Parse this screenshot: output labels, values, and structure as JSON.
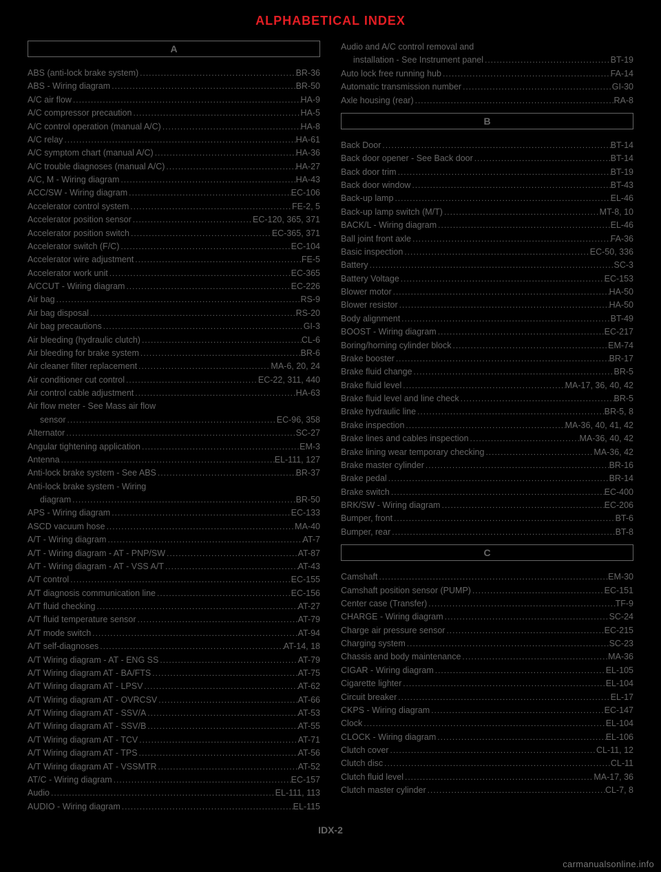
{
  "title": "ALPHABETICAL INDEX",
  "page_number": "IDX-2",
  "footer": "carmanualsonline.info",
  "sections": {
    "A": [
      {
        "label": "ABS (anti-lock brake system)",
        "pg": "BR-36"
      },
      {
        "label": "ABS - Wiring diagram",
        "pg": "BR-50"
      },
      {
        "label": "A/C air flow",
        "pg": "HA-9"
      },
      {
        "label": "A/C compressor precaution",
        "pg": "HA-5"
      },
      {
        "label": "A/C control operation (manual A/C)",
        "pg": "HA-8"
      },
      {
        "label": "A/C relay",
        "pg": "HA-61"
      },
      {
        "label": "A/C symptom chart (manual A/C)",
        "pg": "HA-36"
      },
      {
        "label": "A/C trouble diagnoses (manual A/C)",
        "pg": "HA-27"
      },
      {
        "label": "A/C, M - Wiring diagram",
        "pg": "HA-43"
      },
      {
        "label": "ACC/SW - Wiring diagram",
        "pg": "EC-106"
      },
      {
        "label": "Accelerator control system",
        "pg": "FE-2, 5"
      },
      {
        "label": "Accelerator position sensor",
        "pg": "EC-120, 365, 371"
      },
      {
        "label": "Accelerator position switch",
        "pg": "EC-365, 371"
      },
      {
        "label": "Accelerator switch (F/C)",
        "pg": "EC-104"
      },
      {
        "label": "Accelerator wire adjustment",
        "pg": "FE-5"
      },
      {
        "label": "Accelerator work unit",
        "pg": "EC-365"
      },
      {
        "label": "A/CCUT - Wiring diagram",
        "pg": "EC-226"
      },
      {
        "label": "Air bag",
        "pg": "RS-9"
      },
      {
        "label": "Air bag disposal",
        "pg": "RS-20"
      },
      {
        "label": "Air bag precautions",
        "pg": "GI-3"
      },
      {
        "label": "Air bleeding (hydraulic clutch)",
        "pg": "CL-6"
      },
      {
        "label": "Air bleeding for brake system",
        "pg": "BR-6"
      },
      {
        "label": "Air cleaner filter replacement",
        "pg": "MA-6, 20, 24"
      },
      {
        "label": "Air conditioner cut control",
        "pg": "EC-22, 311, 440"
      },
      {
        "label": "Air control cable adjustment",
        "pg": "HA-63"
      },
      {
        "label": "Air flow meter - See Mass air flow",
        "pg": "",
        "nopg": true
      },
      {
        "label": "sensor",
        "pg": "EC-96, 358",
        "cont": true
      },
      {
        "label": "Alternator",
        "pg": "SC-27"
      },
      {
        "label": "Angular tightening application",
        "pg": "EM-3"
      },
      {
        "label": "Antenna",
        "pg": "EL-111, 127"
      },
      {
        "label": "Anti-lock brake system - See ABS",
        "pg": "BR-37"
      },
      {
        "label": "Anti-lock brake system - Wiring",
        "pg": "",
        "nopg": true
      },
      {
        "label": "diagram",
        "pg": "BR-50",
        "cont": true
      },
      {
        "label": "APS - Wiring diagram",
        "pg": "EC-133"
      },
      {
        "label": "ASCD vacuum hose",
        "pg": "MA-40"
      },
      {
        "label": "A/T - Wiring diagram",
        "pg": "AT-7"
      },
      {
        "label": "A/T - Wiring diagram - AT - PNP/SW",
        "pg": "AT-87"
      },
      {
        "label": "A/T - Wiring diagram - AT - VSS A/T",
        "pg": "AT-43"
      },
      {
        "label": "A/T control",
        "pg": "EC-155"
      },
      {
        "label": "A/T diagnosis communication line",
        "pg": "EC-156"
      },
      {
        "label": "A/T fluid checking",
        "pg": "AT-27"
      },
      {
        "label": "A/T fluid temperature sensor",
        "pg": "AT-79"
      },
      {
        "label": "A/T mode switch",
        "pg": "AT-94"
      },
      {
        "label": "A/T self-diagnoses",
        "pg": "AT-14, 18"
      },
      {
        "label": "A/T Wiring diagram - AT - ENG SS",
        "pg": "AT-79"
      },
      {
        "label": "A/T Wiring diagram AT - BA/FTS",
        "pg": "AT-75"
      },
      {
        "label": "A/T Wiring diagram AT - LPSV",
        "pg": "AT-62"
      },
      {
        "label": "A/T Wiring diagram AT - OVRCSV",
        "pg": "AT-66"
      },
      {
        "label": "A/T Wiring diagram AT - SSV/A",
        "pg": "AT-53"
      },
      {
        "label": "A/T Wiring diagram AT - SSV/B",
        "pg": "AT-55"
      },
      {
        "label": "A/T Wiring diagram AT - TCV",
        "pg": "AT-71"
      },
      {
        "label": "A/T Wiring diagram AT - TPS",
        "pg": "AT-56"
      },
      {
        "label": "A/T Wiring diagram AT - VSSMTR",
        "pg": "AT-52"
      },
      {
        "label": "AT/C - Wiring diagram",
        "pg": "EC-157"
      },
      {
        "label": "Audio",
        "pg": "EL-111, 113"
      },
      {
        "label": "AUDIO - Wiring diagram",
        "pg": "EL-115"
      }
    ],
    "A_right": [
      {
        "label": "Audio and A/C control removal and",
        "pg": "",
        "nopg": true
      },
      {
        "label": "installation - See Instrument panel",
        "pg": "BT-19",
        "cont": true
      },
      {
        "label": "Auto lock free running hub",
        "pg": "FA-14"
      },
      {
        "label": "Automatic transmission number",
        "pg": "GI-30"
      },
      {
        "label": "Axle housing (rear)",
        "pg": "RA-8"
      }
    ],
    "B": [
      {
        "label": "Back Door",
        "pg": "BT-14"
      },
      {
        "label": "Back door opener - See Back door",
        "pg": "BT-14"
      },
      {
        "label": "Back door trim",
        "pg": "BT-19"
      },
      {
        "label": "Back door window",
        "pg": "BT-43"
      },
      {
        "label": "Back-up lamp",
        "pg": "EL-46"
      },
      {
        "label": "Back-up lamp switch (M/T)",
        "pg": "MT-8, 10"
      },
      {
        "label": "BACK/L - Wiring diagram",
        "pg": "EL-46"
      },
      {
        "label": "Ball joint front axle",
        "pg": "FA-36"
      },
      {
        "label": "Basic inspection",
        "pg": "EC-50, 336"
      },
      {
        "label": "Battery",
        "pg": "SC-3"
      },
      {
        "label": "Battery Voltage",
        "pg": "EC-153"
      },
      {
        "label": "Blower motor",
        "pg": "HA-50"
      },
      {
        "label": "Blower resistor",
        "pg": "HA-50"
      },
      {
        "label": "Body alignment",
        "pg": "BT-49"
      },
      {
        "label": "BOOST - Wiring diagram",
        "pg": "EC-217"
      },
      {
        "label": "Boring/horning cylinder block",
        "pg": "EM-74"
      },
      {
        "label": "Brake booster",
        "pg": "BR-17"
      },
      {
        "label": "Brake fluid change",
        "pg": "BR-5"
      },
      {
        "label": "Brake fluid level",
        "pg": "MA-17, 36, 40, 42"
      },
      {
        "label": "Brake fluid level and line check",
        "pg": "BR-5"
      },
      {
        "label": "Brake hydraulic line",
        "pg": "BR-5, 8"
      },
      {
        "label": "Brake inspection",
        "pg": "MA-36, 40, 41, 42"
      },
      {
        "label": "Brake lines and cables inspection",
        "pg": "MA-36, 40, 42"
      },
      {
        "label": "Brake lining wear temporary checking",
        "pg": "MA-36, 42"
      },
      {
        "label": "Brake master cylinder",
        "pg": "BR-16"
      },
      {
        "label": "Brake pedal",
        "pg": "BR-14"
      },
      {
        "label": "Brake switch",
        "pg": "EC-400"
      },
      {
        "label": "BRK/SW - Wiring diagram",
        "pg": "EC-206"
      },
      {
        "label": "Bumper, front",
        "pg": "BT-6"
      },
      {
        "label": "Bumper, rear",
        "pg": "BT-8"
      }
    ],
    "C": [
      {
        "label": "Camshaft",
        "pg": "EM-30"
      },
      {
        "label": "Camshaft position sensor (PUMP)",
        "pg": "EC-151"
      },
      {
        "label": "Center case (Transfer)",
        "pg": "TF-9"
      },
      {
        "label": "CHARGE - Wiring diagram",
        "pg": "SC-24"
      },
      {
        "label": "Charge air pressure sensor",
        "pg": "EC-215"
      },
      {
        "label": "Charging system",
        "pg": "SC-23"
      },
      {
        "label": "Chassis and body maintenance",
        "pg": "MA-36"
      },
      {
        "label": "CIGAR - Wiring diagram",
        "pg": "EL-105"
      },
      {
        "label": "Cigarette lighter",
        "pg": "EL-104"
      },
      {
        "label": "Circuit breaker",
        "pg": "EL-17"
      },
      {
        "label": "CKPS - Wiring diagram",
        "pg": "EC-147"
      },
      {
        "label": "Clock",
        "pg": "EL-104"
      },
      {
        "label": "CLOCK - Wiring diagram",
        "pg": "EL-106"
      },
      {
        "label": "Clutch cover",
        "pg": "CL-11, 12"
      },
      {
        "label": "Clutch disc",
        "pg": "CL-11"
      },
      {
        "label": "Clutch fluid level",
        "pg": "MA-17, 36"
      },
      {
        "label": "Clutch master cylinder",
        "pg": "CL-7, 8"
      }
    ]
  }
}
